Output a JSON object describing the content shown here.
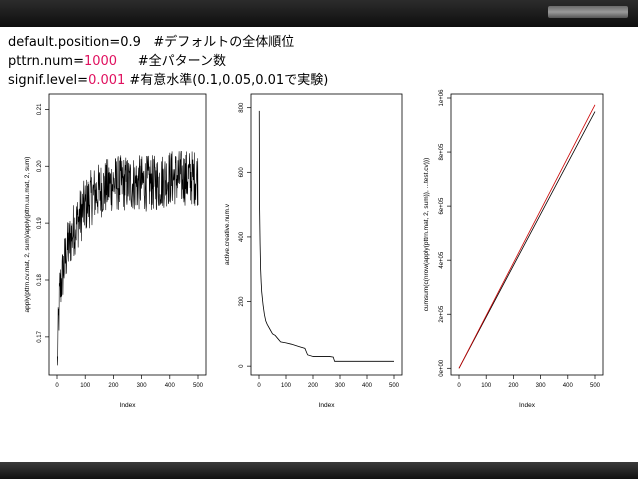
{
  "slide": {
    "lines": [
      {
        "prefix": "default.position=",
        "value": "0.9",
        "suffix": "   #デフォルトの全体順位"
      },
      {
        "prefix": "pttrn.num=",
        "value": "1000",
        "suffix": "     #全パターン数"
      },
      {
        "prefix": "signif.level=",
        "value": "0.001",
        "suffix": " #有意水準(0.1,0.05,0.01で実験)"
      }
    ],
    "value_color": "#e0115f"
  },
  "chart_data": [
    {
      "type": "line",
      "xlabel": "Index",
      "ylabel": "apply(pttrn.cv.mat, 2, sum)/apply(pttrn.uu.mat, 2, sum)",
      "xlim": [
        0,
        500
      ],
      "ylim": [
        0.164,
        0.212
      ],
      "xticks": [
        "0",
        "100",
        "200",
        "300",
        "400",
        "500"
      ],
      "yticks": [
        {
          "value": 0.17,
          "label": "0.17"
        },
        {
          "value": 0.18,
          "label": "0.18"
        },
        {
          "value": 0.19,
          "label": "0.19"
        },
        {
          "value": 0.2,
          "label": "0.20"
        },
        {
          "value": 0.21,
          "label": "0.21"
        }
      ],
      "grid": false,
      "series": [
        {
          "color": "#000000",
          "noisy": true,
          "noise": 0.005,
          "x": [
            1,
            5,
            10,
            20,
            30,
            40,
            60,
            80,
            100,
            130,
            160,
            200,
            250,
            300,
            350,
            400,
            450,
            500
          ],
          "y": [
            0.165,
            0.172,
            0.178,
            0.181,
            0.184,
            0.186,
            0.189,
            0.191,
            0.193,
            0.195,
            0.196,
            0.197,
            0.197,
            0.197,
            0.197,
            0.198,
            0.198,
            0.198
          ]
        }
      ]
    },
    {
      "type": "line",
      "xlabel": "Index",
      "ylabel": "active.creative.num.v",
      "xlim": [
        0,
        500
      ],
      "ylim": [
        -15,
        830
      ],
      "xticks": [
        "0",
        "100",
        "200",
        "300",
        "400",
        "500"
      ],
      "yticks": [
        {
          "value": 0,
          "label": "0"
        },
        {
          "value": 200,
          "label": "200"
        },
        {
          "value": 400,
          "label": "400"
        },
        {
          "value": 600,
          "label": "600"
        },
        {
          "value": 800,
          "label": "800"
        }
      ],
      "grid": false,
      "series": [
        {
          "color": "#000000",
          "noisy": false,
          "x": [
            1,
            2,
            4,
            6,
            8,
            10,
            15,
            20,
            25,
            30,
            40,
            50,
            60,
            70,
            80,
            100,
            120,
            150,
            170,
            180,
            200,
            230,
            260,
            275,
            280,
            300,
            350,
            400,
            450,
            500
          ],
          "y": [
            790,
            500,
            380,
            300,
            260,
            230,
            190,
            160,
            140,
            130,
            115,
            100,
            95,
            85,
            75,
            72,
            68,
            60,
            55,
            35,
            30,
            30,
            30,
            28,
            15,
            15,
            15,
            15,
            15,
            15
          ]
        }
      ]
    },
    {
      "type": "line",
      "xlabel": "Index",
      "ylabel": "cumsum(c(nrow(apply(pttrn.mat, 2, sum)), ...test.cv)))",
      "xlim": [
        0,
        500
      ],
      "ylim": [
        -10000,
        1000000
      ],
      "xticks": [
        "0",
        "100",
        "200",
        "300",
        "400",
        "500"
      ],
      "yticks": [
        {
          "value": 0,
          "label": "0e+00"
        },
        {
          "value": 200000,
          "label": "2e+05"
        },
        {
          "value": 400000,
          "label": "4e+05"
        },
        {
          "value": 600000,
          "label": "6e+05"
        },
        {
          "value": 800000,
          "label": "8e+05"
        },
        {
          "value": 1000000,
          "label": "1e+06"
        }
      ],
      "grid": false,
      "series": [
        {
          "color": "#000000",
          "noisy": false,
          "x": [
            0,
            500
          ],
          "y": [
            0,
            950000
          ]
        },
        {
          "color": "#cc0000",
          "noisy": false,
          "x": [
            0,
            500
          ],
          "y": [
            0,
            975000
          ]
        }
      ]
    }
  ]
}
